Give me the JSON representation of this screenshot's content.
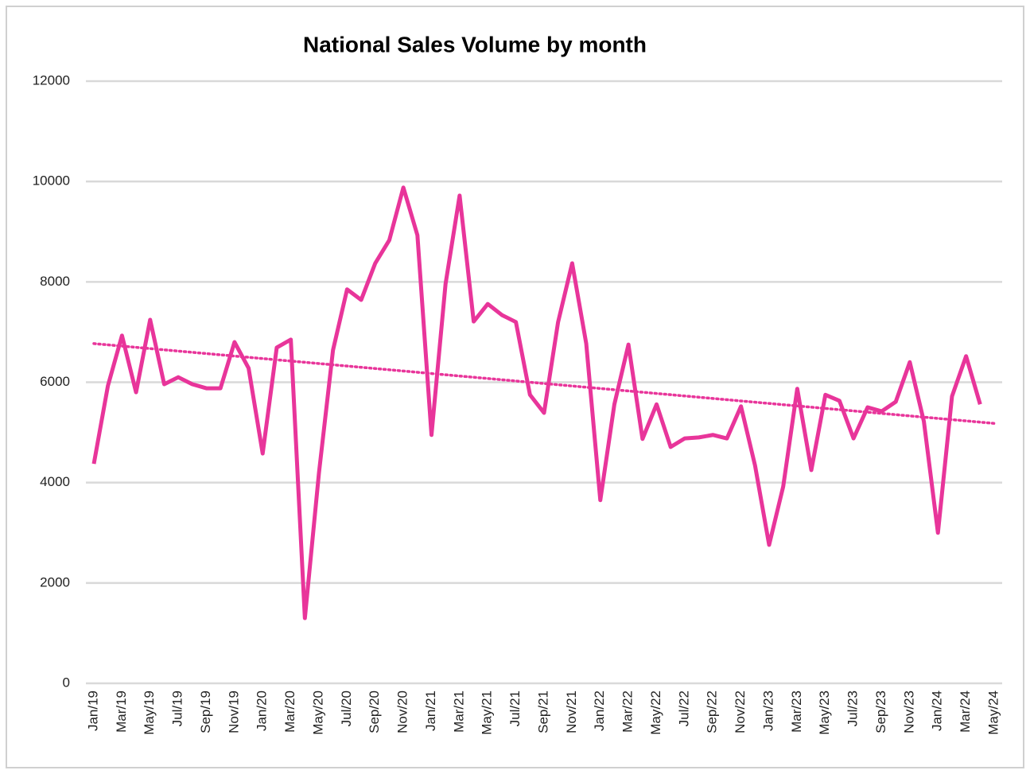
{
  "chart_data": {
    "type": "line",
    "title": "National Sales Volume by month",
    "categories": [
      "Jan/19",
      null,
      "Mar/19",
      null,
      "May/19",
      null,
      "Jul/19",
      null,
      "Sep/19",
      null,
      "Nov/19",
      null,
      "Jan/20",
      null,
      "Mar/20",
      null,
      "May/20",
      null,
      "Jul/20",
      null,
      "Sep/20",
      null,
      "Nov/20",
      null,
      "Jan/21",
      null,
      "Mar/21",
      null,
      "May/21",
      null,
      "Jul/21",
      null,
      "Sep/21",
      null,
      "Nov/21",
      null,
      "Jan/22",
      null,
      "Mar/22",
      null,
      "May/22",
      null,
      "Jul/22",
      null,
      "Sep/22",
      null,
      "Nov/22",
      null,
      "Jan/23",
      null,
      "Mar/23",
      null,
      "May/23",
      null,
      "Jul/23",
      null,
      "Sep/23",
      null,
      "Nov/23",
      null,
      "Jan/24",
      null,
      "Mar/24",
      null,
      "May/24"
    ],
    "series": [
      {
        "color": "#e8359a",
        "values": [
          4375,
          5930,
          6930,
          5800,
          7245,
          5960,
          6100,
          5960,
          5880,
          5880,
          6800,
          6280,
          4580,
          6690,
          6850,
          1300,
          4190,
          6640,
          7850,
          7640,
          8370,
          8830,
          9880,
          8930,
          4950,
          7960,
          9720,
          7210,
          7560,
          7340,
          7200,
          5750,
          5390,
          7200,
          8370,
          6770,
          3650,
          5560,
          6750,
          4870,
          5560,
          4710,
          4880,
          4900,
          4950,
          4880,
          5520,
          4340,
          2760,
          3920,
          5870,
          4250,
          5750,
          5630,
          4880,
          5500,
          5420,
          5610,
          6400,
          5220,
          3000,
          5720,
          6520,
          5560,
          null
        ]
      }
    ],
    "trendline": {
      "start": 6770,
      "end": 5180,
      "color": "#e8359a"
    },
    "ylim": [
      0,
      12000
    ],
    "yticks": [
      0,
      2000,
      4000,
      6000,
      8000,
      10000,
      12000
    ],
    "grid": true
  }
}
